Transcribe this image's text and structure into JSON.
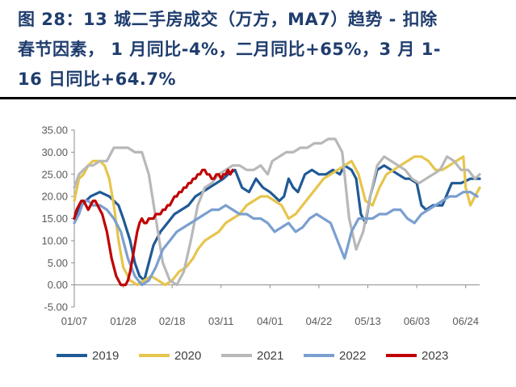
{
  "title_lines": [
    "图 28：13 城二手房成交（万方，MA7）趋势 - 扣除",
    "春节因素，  1 月同比-4%，二月同比+65%，3 月 1-",
    "16 日同比+64.7%"
  ],
  "chart_data": {
    "type": "line",
    "title": "图 28：13 城二手房成交（万方，MA7）趋势 - 扣除春节因素，  1 月同比-4%，二月同比+65%，3 月 1-16 日同比+64.7%",
    "xlabel": "",
    "ylabel": "",
    "x_ticks": [
      "01/07",
      "01/28",
      "02/18",
      "03/11",
      "04/01",
      "04/22",
      "05/13",
      "06/03",
      "06/24"
    ],
    "y_ticks": [
      "35.00",
      "30.00",
      "25.00",
      "20.00",
      "15.00",
      "10.00",
      "5.00",
      "0.00",
      "-5.00"
    ],
    "xlim": [
      "01/07",
      "06/30"
    ],
    "ylim": [
      -5,
      35
    ],
    "grid": false,
    "legend_position": "bottom",
    "series": [
      {
        "name": "2019",
        "color": "#1f5a96",
        "x": [
          "01/07",
          "01/10",
          "01/14",
          "01/18",
          "01/22",
          "01/26",
          "01/28",
          "01/31",
          "02/02",
          "02/04",
          "02/06",
          "02/08",
          "02/10",
          "02/13",
          "02/16",
          "02/19",
          "02/22",
          "02/25",
          "02/28",
          "03/03",
          "03/06",
          "03/09",
          "03/12",
          "03/14",
          "03/17",
          "03/20",
          "03/23",
          "03/26",
          "03/29",
          "04/01",
          "04/03",
          "04/05",
          "04/07",
          "04/09",
          "04/11",
          "04/13",
          "04/16",
          "04/19",
          "04/22",
          "04/25",
          "04/28",
          "05/01",
          "05/03",
          "05/06",
          "05/08",
          "05/10",
          "05/12",
          "05/14",
          "05/17",
          "05/20",
          "05/23",
          "05/26",
          "05/29",
          "05/31",
          "06/03",
          "06/05",
          "06/07",
          "06/10",
          "06/14",
          "06/18",
          "06/22",
          "06/26",
          "06/30"
        ],
        "values": [
          15,
          18,
          20,
          21,
          20,
          18,
          15,
          10,
          5,
          2,
          1,
          5,
          9,
          12,
          14,
          16,
          17,
          18,
          20,
          21,
          22,
          23,
          24,
          25,
          26,
          22,
          21,
          24,
          22,
          21,
          20,
          19,
          20,
          24,
          22,
          21,
          25,
          26,
          25,
          25,
          26,
          25,
          27,
          26,
          24,
          16,
          14,
          20,
          26,
          27,
          26,
          25,
          24,
          24,
          23,
          18,
          17,
          18,
          18,
          23,
          23,
          24,
          24
        ]
      },
      {
        "name": "2020",
        "color": "#e6c54d",
        "x": [
          "01/07",
          "01/09",
          "01/11",
          "01/13",
          "01/15",
          "01/18",
          "01/20",
          "01/22",
          "01/24",
          "01/26",
          "01/28",
          "01/31",
          "02/03",
          "02/06",
          "02/09",
          "02/12",
          "02/15",
          "02/18",
          "02/21",
          "02/24",
          "02/27",
          "03/01",
          "03/04",
          "03/07",
          "03/10",
          "03/13",
          "03/16",
          "03/19",
          "03/22",
          "03/25",
          "03/28",
          "03/31",
          "04/03",
          "04/06",
          "04/09",
          "04/12",
          "04/15",
          "04/18",
          "04/21",
          "04/24",
          "04/27",
          "04/30",
          "05/03",
          "05/06",
          "05/09",
          "05/12",
          "05/15",
          "05/18",
          "05/21",
          "05/24",
          "05/27",
          "05/30",
          "06/02",
          "06/05",
          "06/08",
          "06/11",
          "06/14",
          "06/17",
          "06/20",
          "06/23",
          "06/24",
          "06/26",
          "06/28",
          "06/30"
        ],
        "values": [
          19,
          24,
          25,
          27,
          28,
          28,
          27,
          24,
          18,
          10,
          4,
          1,
          0,
          1,
          2,
          1,
          0,
          1,
          3,
          4,
          6,
          8,
          10,
          11,
          12,
          14,
          15,
          16,
          18,
          19,
          20,
          20,
          19,
          18,
          15,
          16,
          18,
          20,
          22,
          24,
          25,
          26,
          27,
          28,
          25,
          19,
          18,
          22,
          25,
          26,
          27,
          28,
          29,
          29,
          28,
          26,
          26,
          27,
          28,
          29,
          22,
          18,
          20,
          22
        ]
      },
      {
        "name": "2021",
        "color": "#b8b8b8",
        "x": [
          "01/07",
          "01/09",
          "01/11",
          "01/13",
          "01/15",
          "01/18",
          "01/21",
          "01/24",
          "01/27",
          "01/30",
          "02/02",
          "02/05",
          "02/08",
          "02/11",
          "02/14",
          "02/17",
          "02/20",
          "02/23",
          "02/26",
          "03/01",
          "03/04",
          "03/07",
          "03/10",
          "03/13",
          "03/16",
          "03/19",
          "03/22",
          "03/25",
          "03/28",
          "03/31",
          "04/02",
          "04/05",
          "04/08",
          "04/11",
          "04/14",
          "04/17",
          "04/20",
          "04/23",
          "04/26",
          "04/29",
          "05/02",
          "05/05",
          "05/08",
          "05/11",
          "05/14",
          "05/17",
          "05/20",
          "05/23",
          "05/26",
          "05/29",
          "06/01",
          "06/04",
          "06/07",
          "06/10",
          "06/13",
          "06/16",
          "06/19",
          "06/22",
          "06/25",
          "06/28",
          "06/30"
        ],
        "values": [
          22,
          25,
          26,
          27,
          27,
          28,
          28,
          31,
          31,
          31,
          30,
          30,
          25,
          15,
          5,
          1,
          0,
          3,
          10,
          18,
          22,
          23,
          25,
          26,
          27,
          27,
          26,
          26,
          27,
          25,
          28,
          29,
          30,
          30,
          31,
          31,
          32,
          32,
          33,
          33,
          30,
          15,
          8,
          12,
          20,
          27,
          29,
          28,
          27,
          26,
          24,
          23,
          24,
          25,
          26,
          29,
          28,
          26,
          26,
          24,
          25
        ]
      },
      {
        "name": "2022",
        "color": "#7b9fd0",
        "x": [
          "01/07",
          "01/09",
          "01/11",
          "01/13",
          "01/15",
          "01/18",
          "01/21",
          "01/24",
          "01/27",
          "01/30",
          "02/02",
          "02/05",
          "02/08",
          "02/11",
          "02/14",
          "02/17",
          "02/20",
          "02/23",
          "02/26",
          "03/01",
          "03/04",
          "03/07",
          "03/10",
          "03/13",
          "03/16",
          "03/19",
          "03/22",
          "03/25",
          "03/28",
          "03/31",
          "04/03",
          "04/06",
          "04/09",
          "04/12",
          "04/15",
          "04/18",
          "04/21",
          "04/24",
          "04/27",
          "04/30",
          "05/03",
          "05/06",
          "05/09",
          "05/12",
          "05/15",
          "05/18",
          "05/21",
          "05/24",
          "05/27",
          "05/30",
          "06/02",
          "06/05",
          "06/08",
          "06/11",
          "06/14",
          "06/17",
          "06/20",
          "06/23",
          "06/26",
          "06/29"
        ],
        "values": [
          14,
          16,
          19,
          19,
          18,
          18,
          17,
          15,
          12,
          6,
          2,
          0,
          1,
          4,
          8,
          10,
          12,
          13,
          14,
          15,
          16,
          17,
          17,
          18,
          17,
          16,
          16,
          15,
          15,
          14,
          12,
          13,
          14,
          12,
          13,
          15,
          16,
          15,
          14,
          10,
          6,
          12,
          15,
          15,
          15,
          16,
          16,
          17,
          17,
          15,
          14,
          16,
          17,
          18,
          19,
          20,
          20,
          21,
          21,
          20
        ]
      },
      {
        "name": "2023",
        "color": "#c00000",
        "x": [
          "01/07",
          "01/08",
          "01/09",
          "01/10",
          "01/11",
          "01/12",
          "01/13",
          "01/14",
          "01/15",
          "01/16",
          "01/17",
          "01/18",
          "01/19",
          "01/20",
          "01/21",
          "01/22",
          "01/23",
          "01/24",
          "01/25",
          "01/26",
          "01/27",
          "01/28",
          "01/29",
          "01/30",
          "01/31",
          "02/01",
          "02/02",
          "02/03",
          "02/04",
          "02/05",
          "02/06",
          "02/07",
          "02/08",
          "02/09",
          "02/10",
          "02/11",
          "02/12",
          "02/13",
          "02/14",
          "02/15",
          "02/16",
          "02/17",
          "02/18",
          "02/19",
          "02/20",
          "02/21",
          "02/22",
          "02/23",
          "02/24",
          "02/25",
          "02/26",
          "02/27",
          "02/28",
          "03/01",
          "03/02",
          "03/03",
          "03/04",
          "03/05",
          "03/06",
          "03/07",
          "03/08",
          "03/09",
          "03/10",
          "03/11",
          "03/12",
          "03/13",
          "03/14",
          "03/15",
          "03/16"
        ],
        "values": [
          15,
          17,
          18,
          19,
          19,
          18,
          17,
          18,
          19,
          19,
          18,
          17,
          16,
          14,
          12,
          9,
          6,
          4,
          2,
          1,
          0,
          0,
          0,
          1,
          3,
          6,
          9,
          12,
          14,
          15,
          14,
          14,
          15,
          15,
          15,
          16,
          16,
          16,
          17,
          17,
          18,
          18,
          19,
          20,
          20,
          21,
          21,
          22,
          22,
          23,
          23,
          24,
          24,
          25,
          25,
          26,
          26,
          25,
          25,
          24,
          24,
          25,
          25,
          24,
          25,
          25,
          26,
          25,
          26
        ]
      }
    ]
  }
}
